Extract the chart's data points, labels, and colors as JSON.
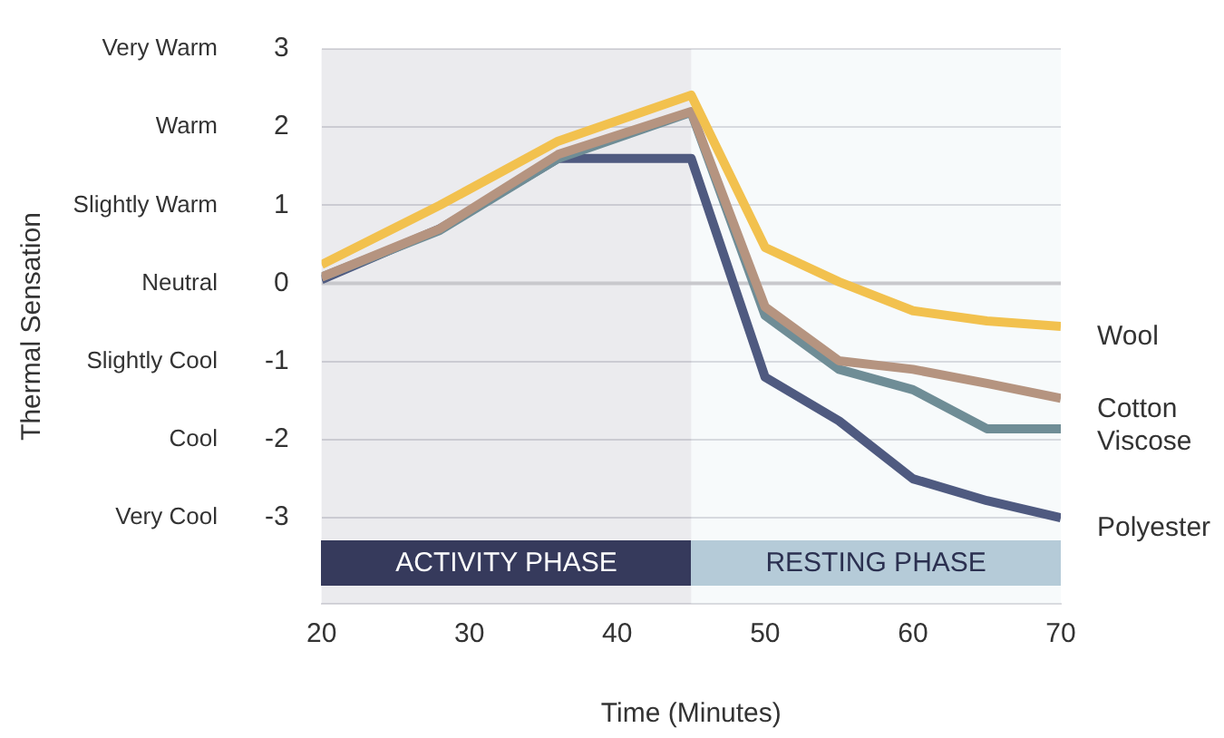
{
  "chart_data": {
    "type": "line",
    "xlabel": "Time (Minutes)",
    "xlim": [
      20,
      70
    ],
    "xticks": [
      20,
      30,
      40,
      50,
      60,
      70
    ],
    "ylim": [
      -4.1,
      3
    ],
    "yticks": [
      -3,
      -2,
      -1,
      0,
      1,
      2,
      3
    ],
    "annotations": [
      "Very Warm",
      "Warm",
      "Slightly Warm",
      "Neutral",
      "Slightly Cool",
      "Cool",
      "Very Cool",
      "Thermal Sensation"
    ],
    "grid": "y",
    "legend": false,
    "marker": "none",
    "line_style": "solid",
    "ref_lines": [
      {
        "axis": "y",
        "value": 0,
        "label": null,
        "color": "#c8c8cc"
      }
    ],
    "bands": [
      {
        "axis": "x",
        "from": 20,
        "to": 45,
        "label": "ACTIVITY PHASE",
        "color": "#363a5c"
      },
      {
        "axis": "x",
        "from": 45,
        "to": 70,
        "label": "RESTING PHASE",
        "color": "#b5cbd8"
      }
    ],
    "series": [
      {
        "name": "Wool",
        "color": "#f2c14e",
        "x": [
          20,
          28,
          36,
          45,
          50,
          55,
          60,
          65,
          70
        ],
        "values": [
          0.24,
          1.0,
          1.82,
          2.41,
          0.46,
          0.02,
          -0.35,
          -0.48,
          -0.55
        ]
      },
      {
        "name": "Cotton",
        "color": "#b59480",
        "x": [
          20,
          28,
          36,
          45,
          50,
          55,
          60,
          65,
          70
        ],
        "values": [
          0.08,
          0.7,
          1.65,
          2.2,
          -0.3,
          -0.99,
          -1.1,
          -1.28,
          -1.47
        ]
      },
      {
        "name": "Viscose",
        "color": "#6f8d96",
        "x": [
          20,
          28,
          36,
          45,
          50,
          55,
          60,
          65,
          70
        ],
        "values": [
          0.08,
          0.68,
          1.6,
          2.19,
          -0.41,
          -1.1,
          -1.36,
          -1.86,
          -1.86
        ]
      },
      {
        "name": "Polyester",
        "color": "#4f5a80",
        "x": [
          20,
          28,
          36,
          45,
          50,
          55,
          60,
          65,
          70
        ],
        "values": [
          0.05,
          0.7,
          1.6,
          1.6,
          -1.2,
          -1.76,
          -2.5,
          -2.78,
          -3.0
        ]
      }
    ]
  }
}
